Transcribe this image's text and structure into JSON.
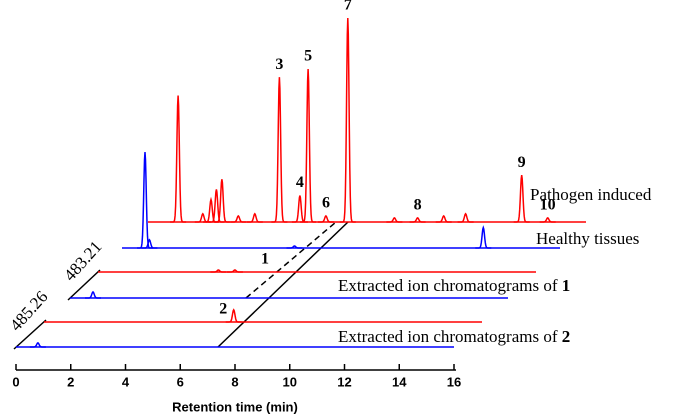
{
  "chart_data": {
    "type": "chromatogram",
    "xlabel": "Retention time (min)",
    "xlim": [
      0,
      16
    ],
    "xticks": [
      0,
      2,
      4,
      6,
      8,
      10,
      12,
      14,
      16
    ],
    "series": [
      {
        "name": "Pathogen induced",
        "color": "#ff0000",
        "x": [
          1.1,
          2.0,
          2.3,
          2.5,
          2.7,
          3.3,
          3.9,
          4.8,
          5.55,
          5.85,
          6.5,
          7.3,
          9.0,
          9.85,
          10.8,
          11.6,
          13.65,
          14.6
        ],
        "values": [
          62,
          4,
          11,
          16,
          21,
          3,
          4,
          71,
          13,
          75,
          3,
          100,
          2,
          2,
          3,
          4,
          23,
          2
        ],
        "peak_labels": [
          {
            "label": "3",
            "x": 4.8
          },
          {
            "label": "5",
            "x": 5.85
          },
          {
            "label": "7",
            "x": 7.3
          },
          {
            "label": "4",
            "x": 5.55
          },
          {
            "label": "6",
            "x": 6.5
          },
          {
            "label": "8",
            "x": 9.85
          },
          {
            "label": "9",
            "x": 13.65
          },
          {
            "label": "10",
            "x": 14.6
          }
        ]
      },
      {
        "name": "Healthy tissues",
        "color": "#0000ff",
        "x": [
          0.84,
          1.0,
          6.3,
          13.2
        ],
        "values": [
          47,
          4,
          1,
          10
        ]
      },
      {
        "color": "#ff0000",
        "x": [
          4.4,
          5.0
        ],
        "values": [
          1,
          1
        ],
        "peak_labels": [
          {
            "label": "1",
            "x": 6.1
          }
        ]
      },
      {
        "color": "#0000ff",
        "x": [
          0.84
        ],
        "values": [
          3
        ]
      },
      {
        "color": "#ff0000",
        "x": [
          6.93
        ],
        "values": [
          6
        ],
        "peak_labels": [
          {
            "label": "2",
            "x": 6.55
          }
        ]
      },
      {
        "color": "#0000ff",
        "x": [
          0.8
        ],
        "values": [
          2
        ]
      }
    ],
    "annotations": [
      {
        "text": "Extracted ion chromatograms of ",
        "bold": "1",
        "mz": 483.21
      },
      {
        "text": "Extracted ion chromatograms of ",
        "bold": "2",
        "mz": 485.26
      }
    ]
  }
}
